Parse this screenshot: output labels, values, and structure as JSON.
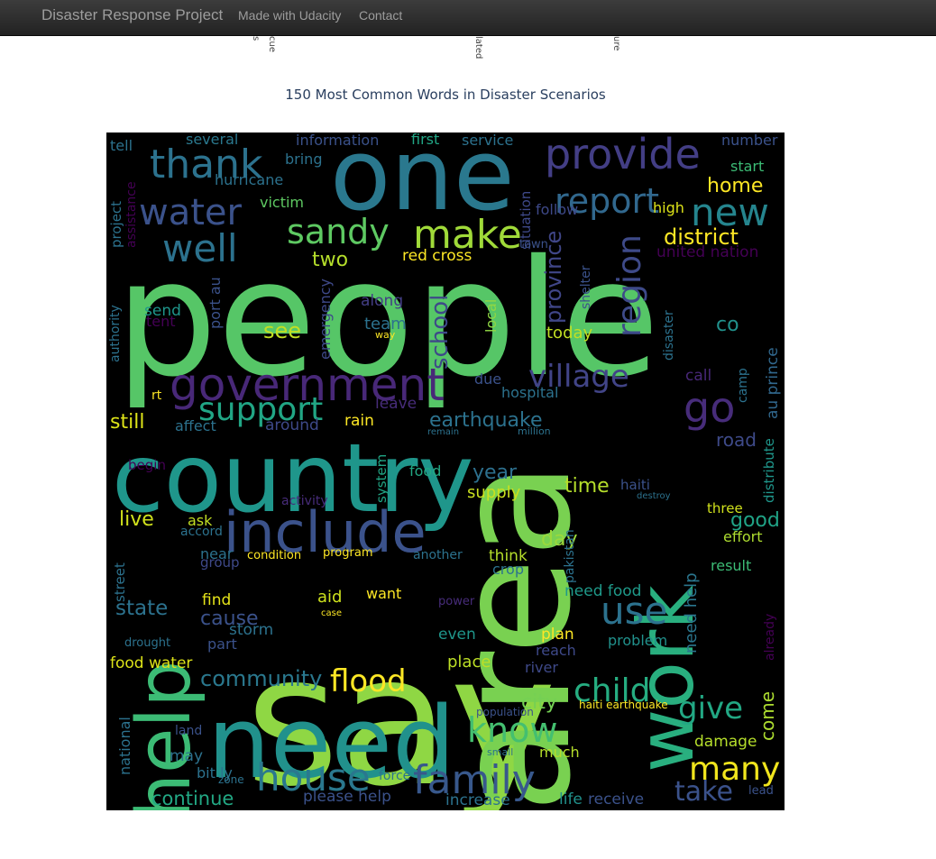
{
  "navbar": {
    "brand": "Disaster Response Project",
    "links": [
      "Made with Udacity",
      "Contact"
    ]
  },
  "clipped_axis_labels": [
    "s",
    "cue",
    "lated",
    "ure"
  ],
  "chart": {
    "title": "150 Most Common Words in Disaster Scenarios",
    "background": "#000000"
  },
  "word_cloud": {
    "palette": "viridis",
    "words": [
      {
        "text": "people",
        "color": "#56c667"
      },
      {
        "text": "say",
        "color": "#8fd744"
      },
      {
        "text": "area",
        "color": "#79d151"
      },
      {
        "text": "country",
        "color": "#1f968b"
      },
      {
        "text": "one",
        "color": "#2a788e"
      },
      {
        "text": "need",
        "color": "#21918c"
      },
      {
        "text": "include",
        "color": "#3b528b"
      },
      {
        "text": "help",
        "color": "#3cbb75"
      },
      {
        "text": "work",
        "color": "#29af7f"
      },
      {
        "text": "government",
        "color": "#482878"
      },
      {
        "text": "thank",
        "color": "#2c728e"
      },
      {
        "text": "provide",
        "color": "#433e85"
      },
      {
        "text": "report",
        "color": "#31688e"
      },
      {
        "text": "water",
        "color": "#3b528b"
      },
      {
        "text": "well",
        "color": "#2c728e"
      },
      {
        "text": "sandy",
        "color": "#5ec962"
      },
      {
        "text": "make",
        "color": "#a0da39"
      },
      {
        "text": "new",
        "color": "#25858e"
      },
      {
        "text": "region",
        "color": "#3e4a89"
      },
      {
        "text": "support",
        "color": "#21a685"
      },
      {
        "text": "village",
        "color": "#414487"
      },
      {
        "text": "go",
        "color": "#472c7a"
      },
      {
        "text": "family",
        "color": "#38588c"
      },
      {
        "text": "house",
        "color": "#2a788e"
      },
      {
        "text": "know",
        "color": "#44bf70"
      },
      {
        "text": "flood",
        "color": "#fde725"
      },
      {
        "text": "many",
        "color": "#f1e51d"
      },
      {
        "text": "child",
        "color": "#26ad81"
      },
      {
        "text": "use",
        "color": "#2c728e"
      },
      {
        "text": "give",
        "color": "#22a884"
      },
      {
        "text": "take",
        "color": "#3b528b"
      },
      {
        "text": "earthquake",
        "color": "#2c728e"
      },
      {
        "text": "school",
        "color": "#3e4989"
      },
      {
        "text": "province",
        "color": "#404688"
      },
      {
        "text": "district",
        "color": "#fde725"
      },
      {
        "text": "home",
        "color": "#fde725"
      },
      {
        "text": "community",
        "color": "#2a788e"
      },
      {
        "text": "continue",
        "color": "#22a884"
      },
      {
        "text": "state",
        "color": "#2c728e"
      },
      {
        "text": "cause",
        "color": "#3b528b"
      },
      {
        "text": "two",
        "color": "#b5de2b"
      },
      {
        "text": "see",
        "color": "#c2df23"
      },
      {
        "text": "still",
        "color": "#dde318"
      },
      {
        "text": "live",
        "color": "#d0e11c"
      },
      {
        "text": "road",
        "color": "#3e4a89"
      },
      {
        "text": "good",
        "color": "#20a386"
      },
      {
        "text": "day",
        "color": "#9bd93c"
      },
      {
        "text": "time",
        "color": "#b5de2b"
      },
      {
        "text": "year",
        "color": "#2d708e"
      },
      {
        "text": "supply",
        "color": "#cae11f"
      },
      {
        "text": "city",
        "color": "#75d054"
      },
      {
        "text": "come",
        "color": "#addc30"
      },
      {
        "text": "need help",
        "color": "#2a768e"
      },
      {
        "text": "need food",
        "color": "#1f9a8a"
      },
      {
        "text": "food water",
        "color": "#dde318"
      },
      {
        "text": "red cross",
        "color": "#fde725"
      },
      {
        "text": "united nation",
        "color": "#440154"
      },
      {
        "text": "port au",
        "color": "#3b528b"
      },
      {
        "text": "au prince",
        "color": "#31688e"
      },
      {
        "text": "bit ly",
        "color": "#2c728e"
      },
      {
        "text": "haiti earthquake",
        "color": "#fde725"
      },
      {
        "text": "please help",
        "color": "#3b528b"
      },
      {
        "text": "increase",
        "color": "#2c728e"
      },
      {
        "text": "life",
        "color": "#21918c"
      },
      {
        "text": "receive",
        "color": "#3b528b"
      },
      {
        "text": "damage",
        "color": "#b5de2b"
      },
      {
        "text": "much",
        "color": "#b5de2b"
      },
      {
        "text": "river",
        "color": "#3e4989"
      },
      {
        "text": "place",
        "color": "#bddf26"
      },
      {
        "text": "problem",
        "color": "#21918c"
      },
      {
        "text": "plan",
        "color": "#fde725"
      },
      {
        "text": "reach",
        "color": "#3e4989"
      },
      {
        "text": "even",
        "color": "#1f968b"
      },
      {
        "text": "crop",
        "color": "#2c728e"
      },
      {
        "text": "think",
        "color": "#b5de2b"
      },
      {
        "text": "want",
        "color": "#fde725"
      },
      {
        "text": "aid",
        "color": "#cde11d"
      },
      {
        "text": "find",
        "color": "#e5e419"
      },
      {
        "text": "storm",
        "color": "#2c728e"
      },
      {
        "text": "part",
        "color": "#3b528b"
      },
      {
        "text": "rain",
        "color": "#fde725"
      },
      {
        "text": "around",
        "color": "#3e4989"
      },
      {
        "text": "affect",
        "color": "#2c728e"
      },
      {
        "text": "leave",
        "color": "#472c7a"
      },
      {
        "text": "hospital",
        "color": "#2c728e"
      },
      {
        "text": "due",
        "color": "#3b528b"
      },
      {
        "text": "local",
        "color": "#8fd744"
      },
      {
        "text": "today",
        "color": "#c2df23"
      },
      {
        "text": "team",
        "color": "#2c728e"
      },
      {
        "text": "along",
        "color": "#433e85"
      },
      {
        "text": "emergency",
        "color": "#3e4989"
      },
      {
        "text": "send",
        "color": "#1f968b"
      },
      {
        "text": "tent",
        "color": "#440154"
      },
      {
        "text": "authority",
        "color": "#2c728e"
      },
      {
        "text": "project",
        "color": "#2c728e"
      },
      {
        "text": "assistance",
        "color": "#440154"
      },
      {
        "text": "tell",
        "color": "#2c728e"
      },
      {
        "text": "several",
        "color": "#2a788e"
      },
      {
        "text": "information",
        "color": "#3b528b"
      },
      {
        "text": "first",
        "color": "#21a685"
      },
      {
        "text": "service",
        "color": "#2c728e"
      },
      {
        "text": "number",
        "color": "#3b528b"
      },
      {
        "text": "start",
        "color": "#3cbb75"
      },
      {
        "text": "bring",
        "color": "#2c728e"
      },
      {
        "text": "hurricane",
        "color": "#2c728e"
      },
      {
        "text": "victim",
        "color": "#5ec962"
      },
      {
        "text": "situation",
        "color": "#3e4989"
      },
      {
        "text": "follow",
        "color": "#3e4989"
      },
      {
        "text": "high",
        "color": "#dde318"
      },
      {
        "text": "town",
        "color": "#3b528b"
      },
      {
        "text": "shelter",
        "color": "#3b528b"
      },
      {
        "text": "disaster",
        "color": "#2c728e"
      },
      {
        "text": "call",
        "color": "#482878"
      },
      {
        "text": "camp",
        "color": "#2c728e"
      },
      {
        "text": "co",
        "color": "#21918c"
      },
      {
        "text": "distribute",
        "color": "#1f968b"
      },
      {
        "text": "three",
        "color": "#d0e11c"
      },
      {
        "text": "effort",
        "color": "#addc30"
      },
      {
        "text": "result",
        "color": "#3cbb75"
      },
      {
        "text": "already",
        "color": "#440154"
      },
      {
        "text": "haiti",
        "color": "#3b528b"
      },
      {
        "text": "destroy",
        "color": "#2c728e"
      },
      {
        "text": "pakistan",
        "color": "#2c728e"
      },
      {
        "text": "another",
        "color": "#2c728e"
      },
      {
        "text": "program",
        "color": "#fde725"
      },
      {
        "text": "condition",
        "color": "#fde725"
      },
      {
        "text": "near",
        "color": "#2c728e"
      },
      {
        "text": "group",
        "color": "#3e4989"
      },
      {
        "text": "accord",
        "color": "#2c728e"
      },
      {
        "text": "ask",
        "color": "#c2df23"
      },
      {
        "text": "begin",
        "color": "#440154"
      },
      {
        "text": "activity",
        "color": "#472c7a"
      },
      {
        "text": "system",
        "color": "#21a685"
      },
      {
        "text": "food",
        "color": "#22a884"
      },
      {
        "text": "million",
        "color": "#2c728e"
      },
      {
        "text": "remain",
        "color": "#2c728e"
      },
      {
        "text": "rt",
        "color": "#fde725"
      },
      {
        "text": "street",
        "color": "#2c728e"
      },
      {
        "text": "drought",
        "color": "#2c728e"
      },
      {
        "text": "national",
        "color": "#2c728e"
      },
      {
        "text": "land",
        "color": "#3b528b"
      },
      {
        "text": "may",
        "color": "#2c728e"
      },
      {
        "text": "zone",
        "color": "#2c728e"
      },
      {
        "text": "force",
        "color": "#2c728e"
      },
      {
        "text": "small",
        "color": "#2c728e"
      },
      {
        "text": "population",
        "color": "#3b528b"
      },
      {
        "text": "power",
        "color": "#472c7a"
      },
      {
        "text": "case",
        "color": "#fde725"
      },
      {
        "text": "way",
        "color": "#fde725"
      },
      {
        "text": "lead",
        "color": "#3b528b"
      }
    ]
  }
}
